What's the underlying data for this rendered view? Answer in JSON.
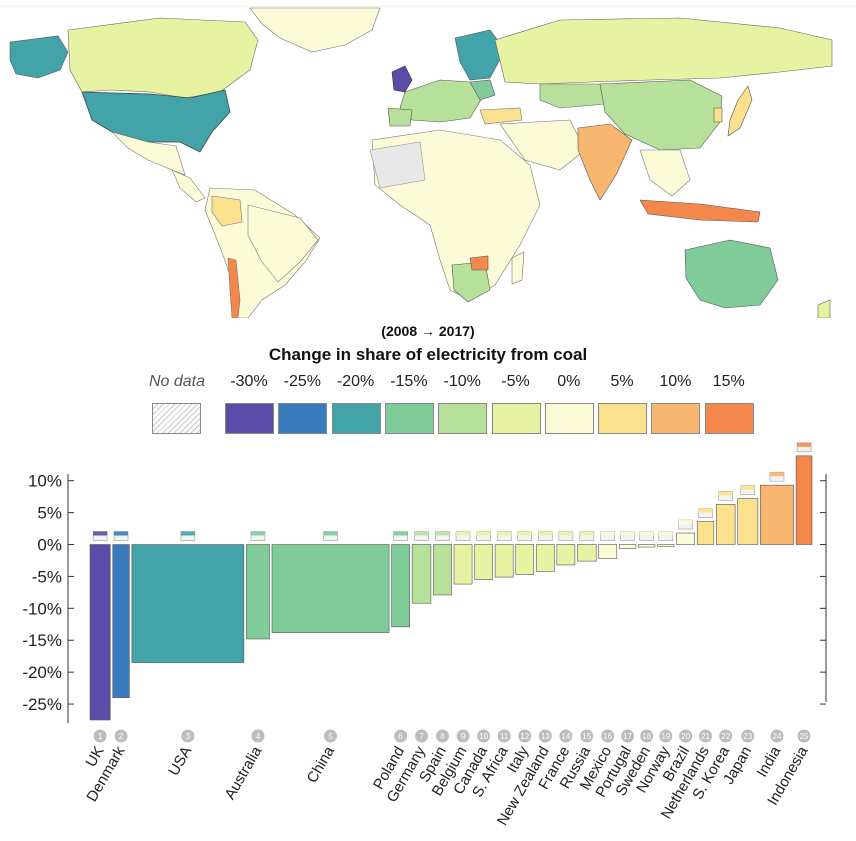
{
  "legend": {
    "period": "(2008 → 2017)",
    "title": "Change in share of electricity from coal",
    "no_data": "No data",
    "stops": [
      {
        "label": "-30%",
        "color": "#5b4ca8"
      },
      {
        "label": "-25%",
        "color": "#3a7bbd"
      },
      {
        "label": "-20%",
        "color": "#42a3a8"
      },
      {
        "label": "-15%",
        "color": "#7fcb9a"
      },
      {
        "label": "-10%",
        "color": "#b7e19b"
      },
      {
        "label": "-5%",
        "color": "#e7f3a3"
      },
      {
        "label": "0%",
        "color": "#fcfbd8"
      },
      {
        "label": "5%",
        "color": "#fbe08d"
      },
      {
        "label": "10%",
        "color": "#f8b771"
      },
      {
        "label": "15%",
        "color": "#f4884c"
      }
    ]
  },
  "chart_data": {
    "type": "bar",
    "title": "Change in share of electricity from coal",
    "subtitle": "(2008 → 2017)",
    "width_encoding": "bar width proportional to country electricity generation",
    "ylim": [
      -27.5,
      14.5
    ],
    "yticks": [
      "10%",
      "5%",
      "0%",
      "-5%",
      "-10%",
      "-15%",
      "-20%",
      "-25%"
    ],
    "ytick_values": [
      10,
      5,
      0,
      -5,
      -10,
      -15,
      -20,
      -25
    ],
    "categories": [
      "UK",
      "Denmark",
      "USA",
      "Australia",
      "China",
      "Poland",
      "Germany",
      "Spain",
      "Belgium",
      "Canada",
      "S. Africa",
      "Italy",
      "New Zealand",
      "France",
      "Russia",
      "Mexico",
      "Portugal",
      "Sweden",
      "Norway",
      "Brazil",
      "Netherlands",
      "S. Korea",
      "Japan",
      "India",
      "Indonesia"
    ],
    "ranks": [
      "1",
      "2",
      "3",
      "4",
      "5",
      "6",
      "7",
      "8",
      "9",
      "10",
      "11",
      "12",
      "13",
      "14",
      "15",
      "16",
      "17",
      "18",
      "19",
      "20",
      "21",
      "22",
      "23",
      "24",
      "25"
    ],
    "values": [
      -27.5,
      -24.0,
      -18.5,
      -14.8,
      -13.8,
      -12.9,
      -9.2,
      -7.9,
      -6.2,
      -5.5,
      -5.1,
      -4.7,
      -4.2,
      -3.2,
      -2.6,
      -2.2,
      -0.6,
      -0.4,
      -0.3,
      1.8,
      3.6,
      6.3,
      7.2,
      9.3,
      13.9
    ],
    "colors": [
      "#5b4ca8",
      "#3a7bbd",
      "#42a3a8",
      "#7fcb9a",
      "#7fcb9a",
      "#7fcb9a",
      "#b7e19b",
      "#b7e19b",
      "#e7f3a3",
      "#e7f3a3",
      "#e7f3a3",
      "#e7f3a3",
      "#e7f3a3",
      "#e7f3a3",
      "#e7f3a3",
      "#fcfbd8",
      "#fcfbd8",
      "#fcfbd8",
      "#fcfbd8",
      "#fcfbd8",
      "#fbe08d",
      "#fbe08d",
      "#fbe08d",
      "#f8b771",
      "#f4884c"
    ],
    "relative_widths": [
      2.8,
      2.3,
      15.5,
      3.2,
      16.2,
      2.5,
      2.6,
      2.5,
      2.5,
      2.5,
      2.5,
      2.5,
      2.5,
      2.5,
      2.6,
      2.5,
      2.3,
      2.3,
      2.3,
      2.5,
      2.3,
      2.6,
      2.8,
      4.6,
      2.2
    ],
    "flags": [
      "uk-flag",
      "denmark-flag",
      "usa-flag",
      "australia-flag",
      "china-flag",
      "poland-flag",
      "germany-flag",
      "spain-flag",
      "belgium-flag",
      "canada-flag",
      "south-africa-flag",
      "italy-flag",
      "new-zealand-flag",
      "france-flag",
      "russia-flag",
      "mexico-flag",
      "portugal-flag",
      "sweden-flag",
      "norway-flag",
      "brazil-flag",
      "netherlands-flag",
      "south-korea-flag",
      "japan-flag",
      "india-flag",
      "indonesia-flag"
    ]
  }
}
